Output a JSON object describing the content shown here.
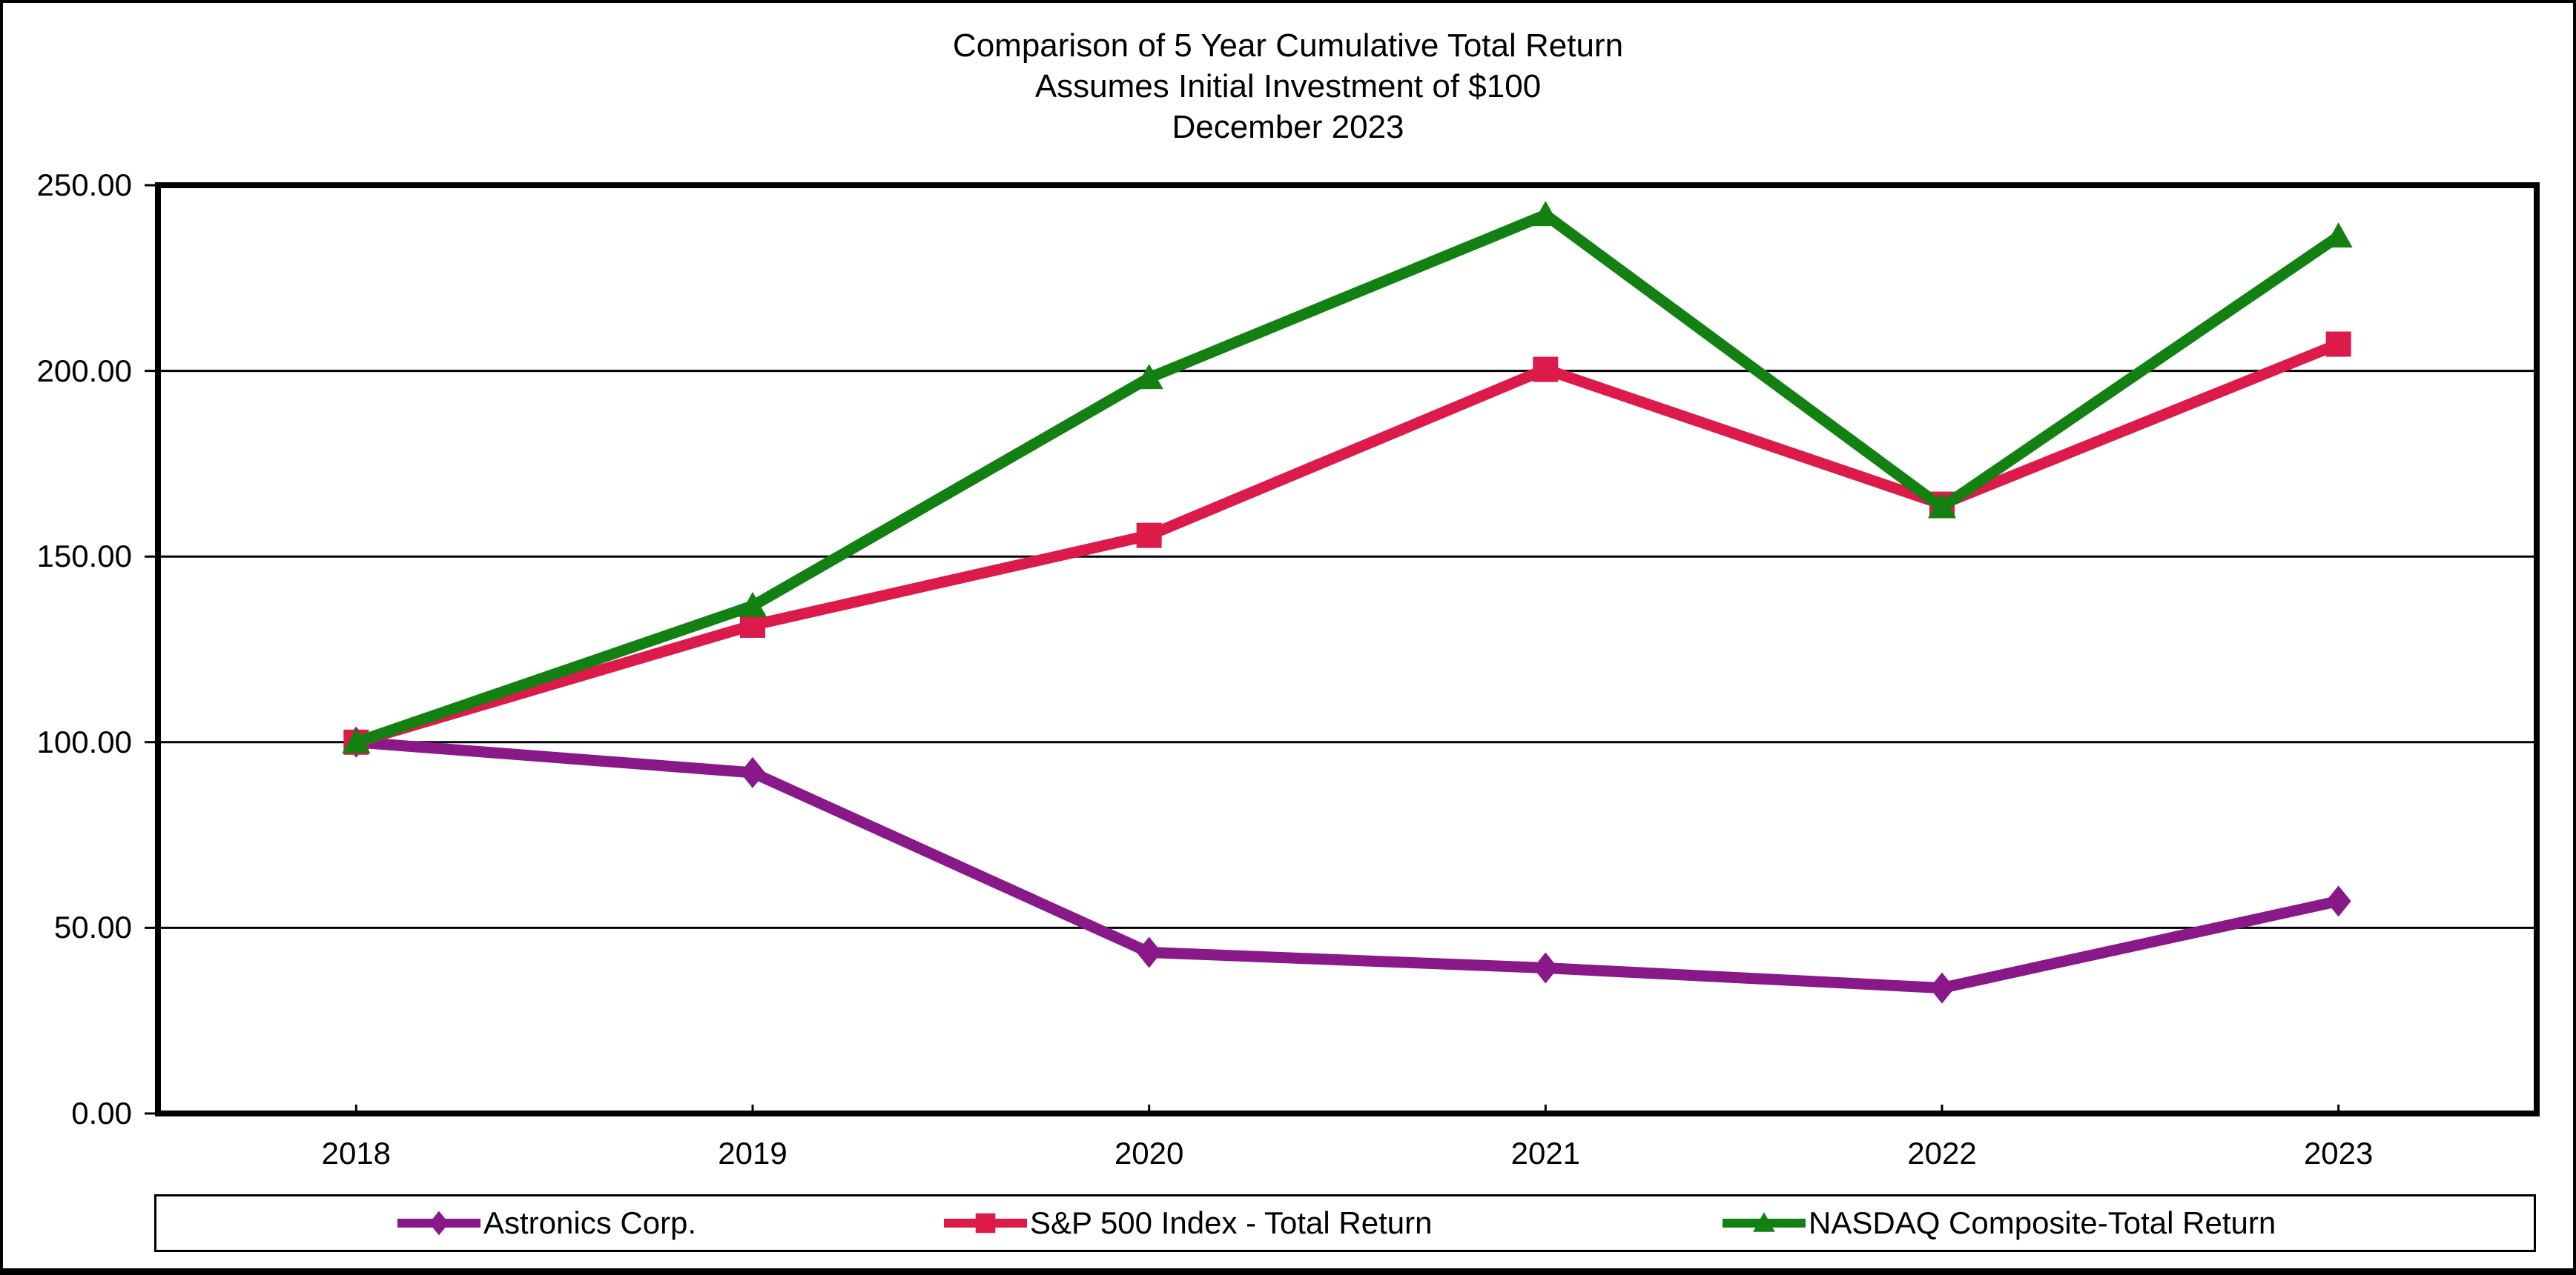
{
  "page": {
    "background": "#ffffff",
    "border_color": "#000000"
  },
  "chart_data": {
    "type": "line",
    "title_lines": [
      "Comparison of 5 Year Cumulative Total Return",
      "Assumes Initial Investment of $100",
      "December 2023"
    ],
    "categories": [
      "2018",
      "2019",
      "2020",
      "2021",
      "2022",
      "2023"
    ],
    "y_tick_labels": [
      "250.00",
      "200.00",
      "150.00",
      "100.00",
      "50.00",
      "0.00"
    ],
    "ylim": [
      0,
      250
    ],
    "y_step": 50,
    "grid": "horizontal-only",
    "legend_position": "bottom-box",
    "axis_color": "#000000",
    "series": [
      {
        "name": "Astronics Corp.",
        "color": "#891889",
        "marker": "diamond",
        "values": [
          100.0,
          91.8,
          43.4,
          39.2,
          33.8,
          57.2
        ]
      },
      {
        "name": "S&P 500 Index - Total Return",
        "color": "#DC1B4B",
        "marker": "square",
        "values": [
          100.0,
          131.5,
          155.7,
          200.4,
          164.1,
          207.2
        ]
      },
      {
        "name": "NASDAQ Composite-Total Return",
        "color": "#128112",
        "marker": "triangle-up",
        "values": [
          100.0,
          136.7,
          198.1,
          242.0,
          163.3,
          236.2
        ]
      }
    ]
  }
}
